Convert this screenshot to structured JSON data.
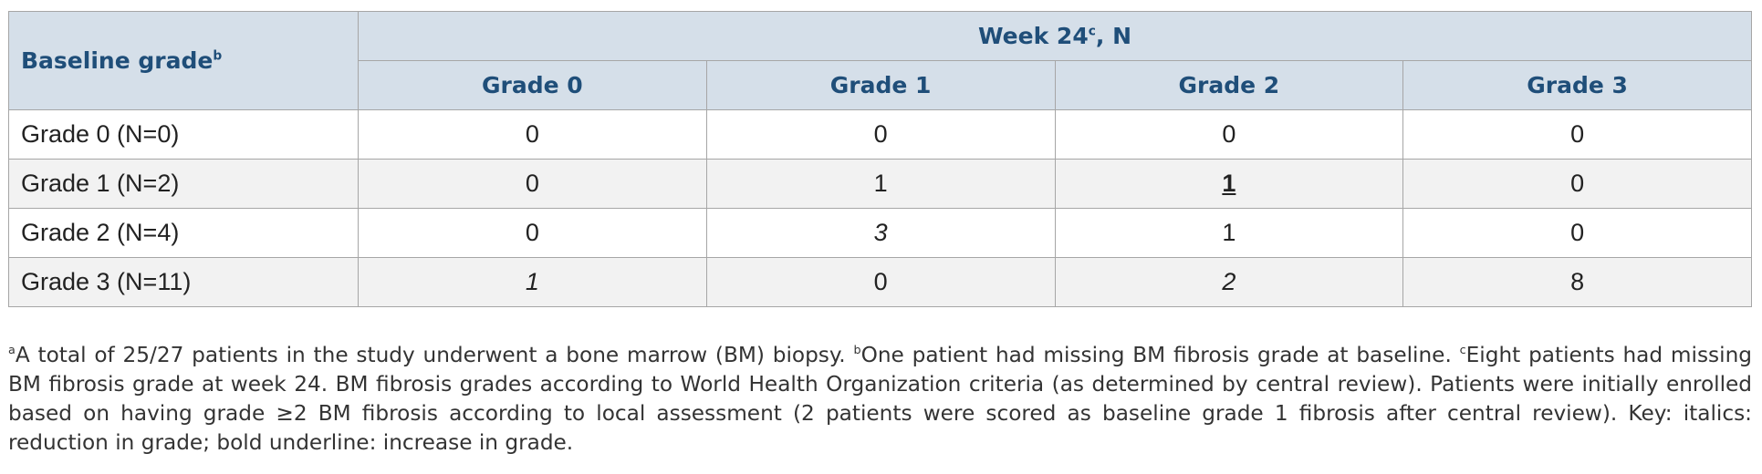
{
  "table": {
    "header": {
      "row_label": {
        "text": "Baseline grade",
        "note": "b"
      },
      "group": {
        "text": "Week 24",
        "note": "c",
        "suffix": ", N"
      },
      "columns": [
        "Grade 0",
        "Grade 1",
        "Grade 2",
        "Grade 3"
      ]
    },
    "rows": [
      {
        "label": "Grade 0 (N=0)",
        "values": [
          0,
          0,
          0,
          0
        ],
        "styles": [
          "normal",
          "normal",
          "normal",
          "normal"
        ]
      },
      {
        "label": "Grade 1 (N=2)",
        "values": [
          0,
          1,
          1,
          0
        ],
        "styles": [
          "normal",
          "normal",
          "bold-underline",
          "normal"
        ]
      },
      {
        "label": "Grade 2 (N=4)",
        "values": [
          0,
          3,
          1,
          0
        ],
        "styles": [
          "normal",
          "italic",
          "normal",
          "normal"
        ]
      },
      {
        "label": "Grade 3 (N=11)",
        "values": [
          1,
          0,
          2,
          8
        ],
        "styles": [
          "italic",
          "normal",
          "italic",
          "normal"
        ]
      }
    ]
  },
  "footnotes": [
    {
      "mark": "a",
      "text": "A total of 25/27 patients in the study underwent a bone marrow (BM) biopsy. "
    },
    {
      "mark": "b",
      "text": "One patient had missing BM fibrosis grade at baseline. "
    },
    {
      "mark": "c",
      "text": "Eight patients had missing BM fibrosis grade at week 24. BM fibrosis grades according to World Health Organization criteria (as determined by central review). Patients were initially enrolled based on having grade ≥2 BM fibrosis according to local assessment (2 patients were scored as baseline grade 1 fibrosis after central review). Key: italics: reduction in grade; bold underline: increase in grade."
    }
  ]
}
